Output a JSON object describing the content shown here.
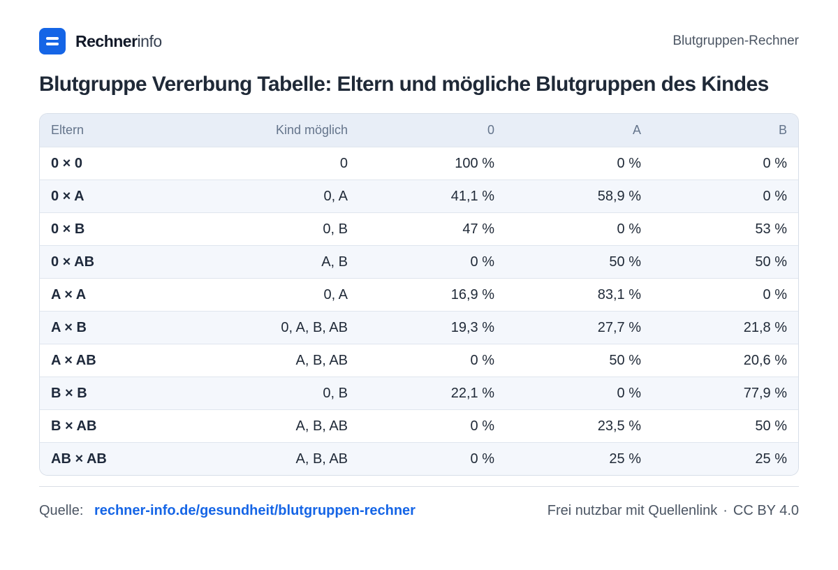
{
  "header": {
    "brand_bold": "Rechner",
    "brand_light": "info",
    "page_label": "Blutgruppen-Rechner"
  },
  "title": "Blutgruppe Vererbung Tabelle: Eltern und mögliche Blutgruppen des Kindes",
  "table": {
    "columns": [
      "Eltern",
      "Kind möglich",
      "0",
      "A",
      "B"
    ],
    "rows": [
      [
        "0 × 0",
        "0",
        "100 %",
        "0 %",
        "0 %"
      ],
      [
        "0 × A",
        "0, A",
        "41,1 %",
        "58,9 %",
        "0 %"
      ],
      [
        "0 × B",
        "0, B",
        "47 %",
        "0 %",
        "53 %"
      ],
      [
        "0 × AB",
        "A, B",
        "0 %",
        "50 %",
        "50 %"
      ],
      [
        "A × A",
        "0, A",
        "16,9 %",
        "83,1 %",
        "0 %"
      ],
      [
        "A × B",
        "0, A, B, AB",
        "19,3 %",
        "27,7 %",
        "21,8 %"
      ],
      [
        "A × AB",
        "A, B, AB",
        "0 %",
        "50 %",
        "20,6 %"
      ],
      [
        "B × B",
        "0, B",
        "22,1 %",
        "0 %",
        "77,9 %"
      ],
      [
        "B × AB",
        "A, B, AB",
        "0 %",
        "23,5 %",
        "50 %"
      ],
      [
        "AB × AB",
        "A, B, AB",
        "0 %",
        "25 %",
        "25 %"
      ]
    ]
  },
  "footer": {
    "source_label": "Quelle:",
    "source_link": "rechner-info.de/gesundheit/blutgruppen-rechner",
    "license_text": "Frei nutzbar mit Quellenlink",
    "separator": "·",
    "license_name": "CC BY 4.0"
  },
  "colors": {
    "accent": "#1565e6",
    "header_bg": "#e8eef7",
    "row_alt_bg": "#f4f7fc"
  }
}
